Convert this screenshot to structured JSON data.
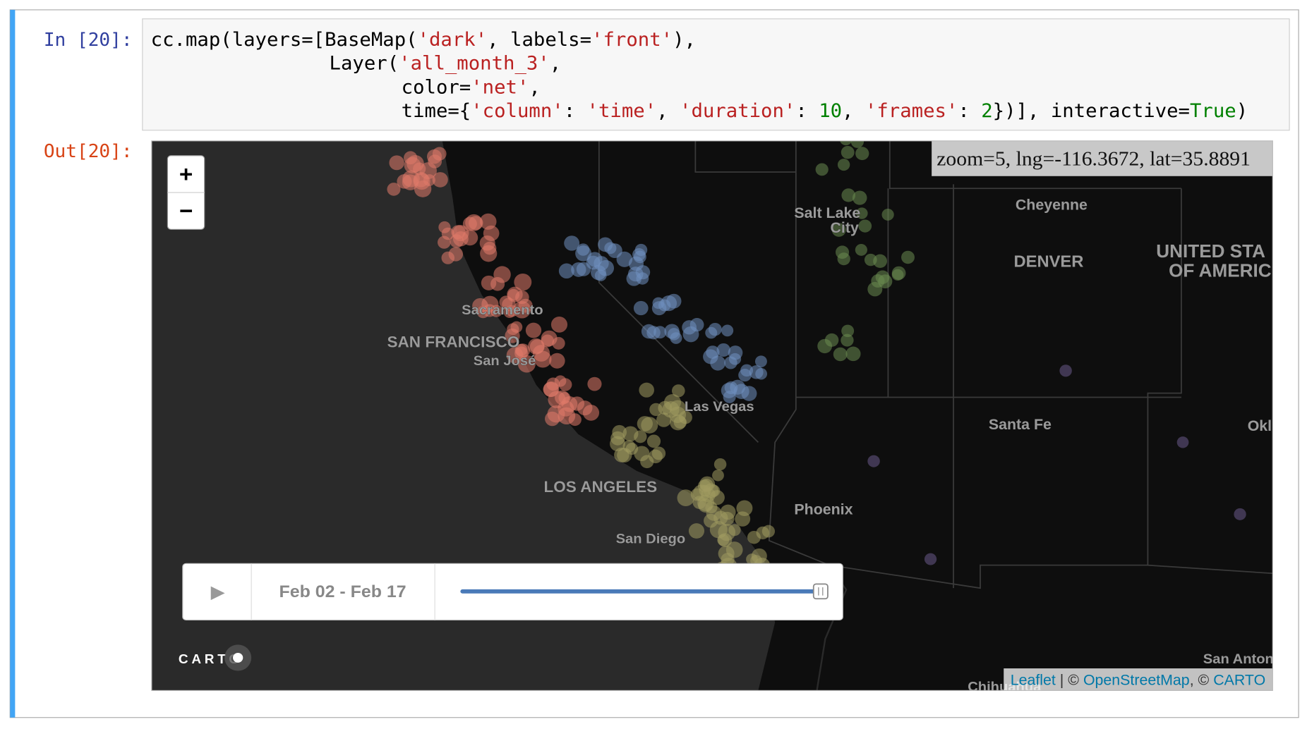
{
  "notebook": {
    "input_prompt": "In [20]:",
    "output_prompt": "Out[20]:",
    "code_lines": [
      [
        {
          "t": "cc.map(layers=[BaseMap(",
          "c": "#000"
        },
        {
          "t": "'dark'",
          "c": "#ba2121"
        },
        {
          "t": ", labels=",
          "c": "#000"
        },
        {
          "t": "'front'",
          "c": "#ba2121"
        },
        {
          "t": "),",
          "c": "#000"
        }
      ],
      [
        {
          "t": "Layer(",
          "c": "#000"
        },
        {
          "t": "'all_month_3'",
          "c": "#ba2121"
        },
        {
          "t": ",",
          "c": "#000"
        }
      ],
      [
        {
          "t": "color=",
          "c": "#000"
        },
        {
          "t": "'net'",
          "c": "#ba2121"
        },
        {
          "t": ",",
          "c": "#000"
        }
      ],
      [
        {
          "t": "time={",
          "c": "#000"
        },
        {
          "t": "'column'",
          "c": "#ba2121"
        },
        {
          "t": ": ",
          "c": "#000"
        },
        {
          "t": "'time'",
          "c": "#ba2121"
        },
        {
          "t": ", ",
          "c": "#000"
        },
        {
          "t": "'duration'",
          "c": "#ba2121"
        },
        {
          "t": ": ",
          "c": "#000"
        },
        {
          "t": "10",
          "c": "#008000"
        },
        {
          "t": ", ",
          "c": "#000"
        },
        {
          "t": "'frames'",
          "c": "#ba2121"
        },
        {
          "t": ": ",
          "c": "#000"
        },
        {
          "t": "2",
          "c": "#008000"
        },
        {
          "t": "})], interactive=",
          "c": "#000"
        },
        {
          "t": "True",
          "c": "#008000"
        },
        {
          "t": ")",
          "c": "#000"
        }
      ]
    ]
  },
  "map": {
    "zoom_in": "+",
    "zoom_out": "−",
    "info": "zoom=5, lng=-116.3672, lat=35.8891",
    "labels": [
      "Cheyenne",
      "Salt Lake",
      "City",
      "DENVER",
      "UNITED STA",
      "OF AMERIC",
      "Sacramento",
      "SAN FRANCISCO",
      "San José",
      "Las Vegas",
      "Santa Fe",
      "Okl",
      "LOS ANGELES",
      "Phoenix",
      "San Diego",
      "San Anton",
      "Chihuahua"
    ],
    "timeline": {
      "play": "▶",
      "range": "Feb 02 - Feb 17"
    },
    "logo": "CARTO",
    "attribution": [
      {
        "t": "Leaflet",
        "link": true
      },
      {
        "t": " | © ",
        "link": false
      },
      {
        "t": "OpenStreetMap",
        "link": true
      },
      {
        "t": ", © ",
        "link": false
      },
      {
        "t": "CARTO",
        "link": true
      }
    ]
  }
}
